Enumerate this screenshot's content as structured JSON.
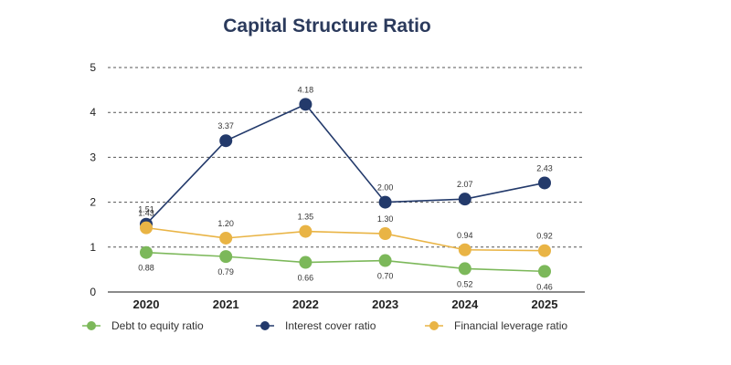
{
  "chart_data": {
    "type": "line",
    "title": "Capital Structure Ratio",
    "categories": [
      "2020",
      "2021",
      "2022",
      "2023",
      "2024",
      "2025"
    ],
    "ylim": [
      0,
      5
    ],
    "yticks": [
      "0",
      "1",
      "2",
      "3",
      "4",
      "5"
    ],
    "grid": true,
    "legend_position": "bottom",
    "series": [
      {
        "name": "Debt to equity ratio",
        "color": "#7cb85a",
        "values": [
          0.88,
          0.79,
          0.66,
          0.7,
          0.52,
          0.46
        ],
        "labels": [
          "0.88",
          "0.79",
          "0.66",
          "0.70",
          "0.52",
          "0.46"
        ],
        "label_position": "below"
      },
      {
        "name": "Interest cover ratio",
        "color": "#233a6b",
        "values": [
          1.51,
          3.37,
          4.18,
          2.0,
          2.07,
          2.43
        ],
        "labels": [
          "1.51",
          "3.37",
          "4.18",
          "2.00",
          "2.07",
          "2.43"
        ],
        "label_position": "above"
      },
      {
        "name": "Financial leverage ratio",
        "color": "#e9b445",
        "values": [
          1.43,
          1.2,
          1.35,
          1.3,
          0.94,
          0.92
        ],
        "labels": [
          "1.43",
          "1.20",
          "1.35",
          "1.30",
          "0.94",
          "0.92"
        ],
        "label_position": "above"
      }
    ]
  }
}
